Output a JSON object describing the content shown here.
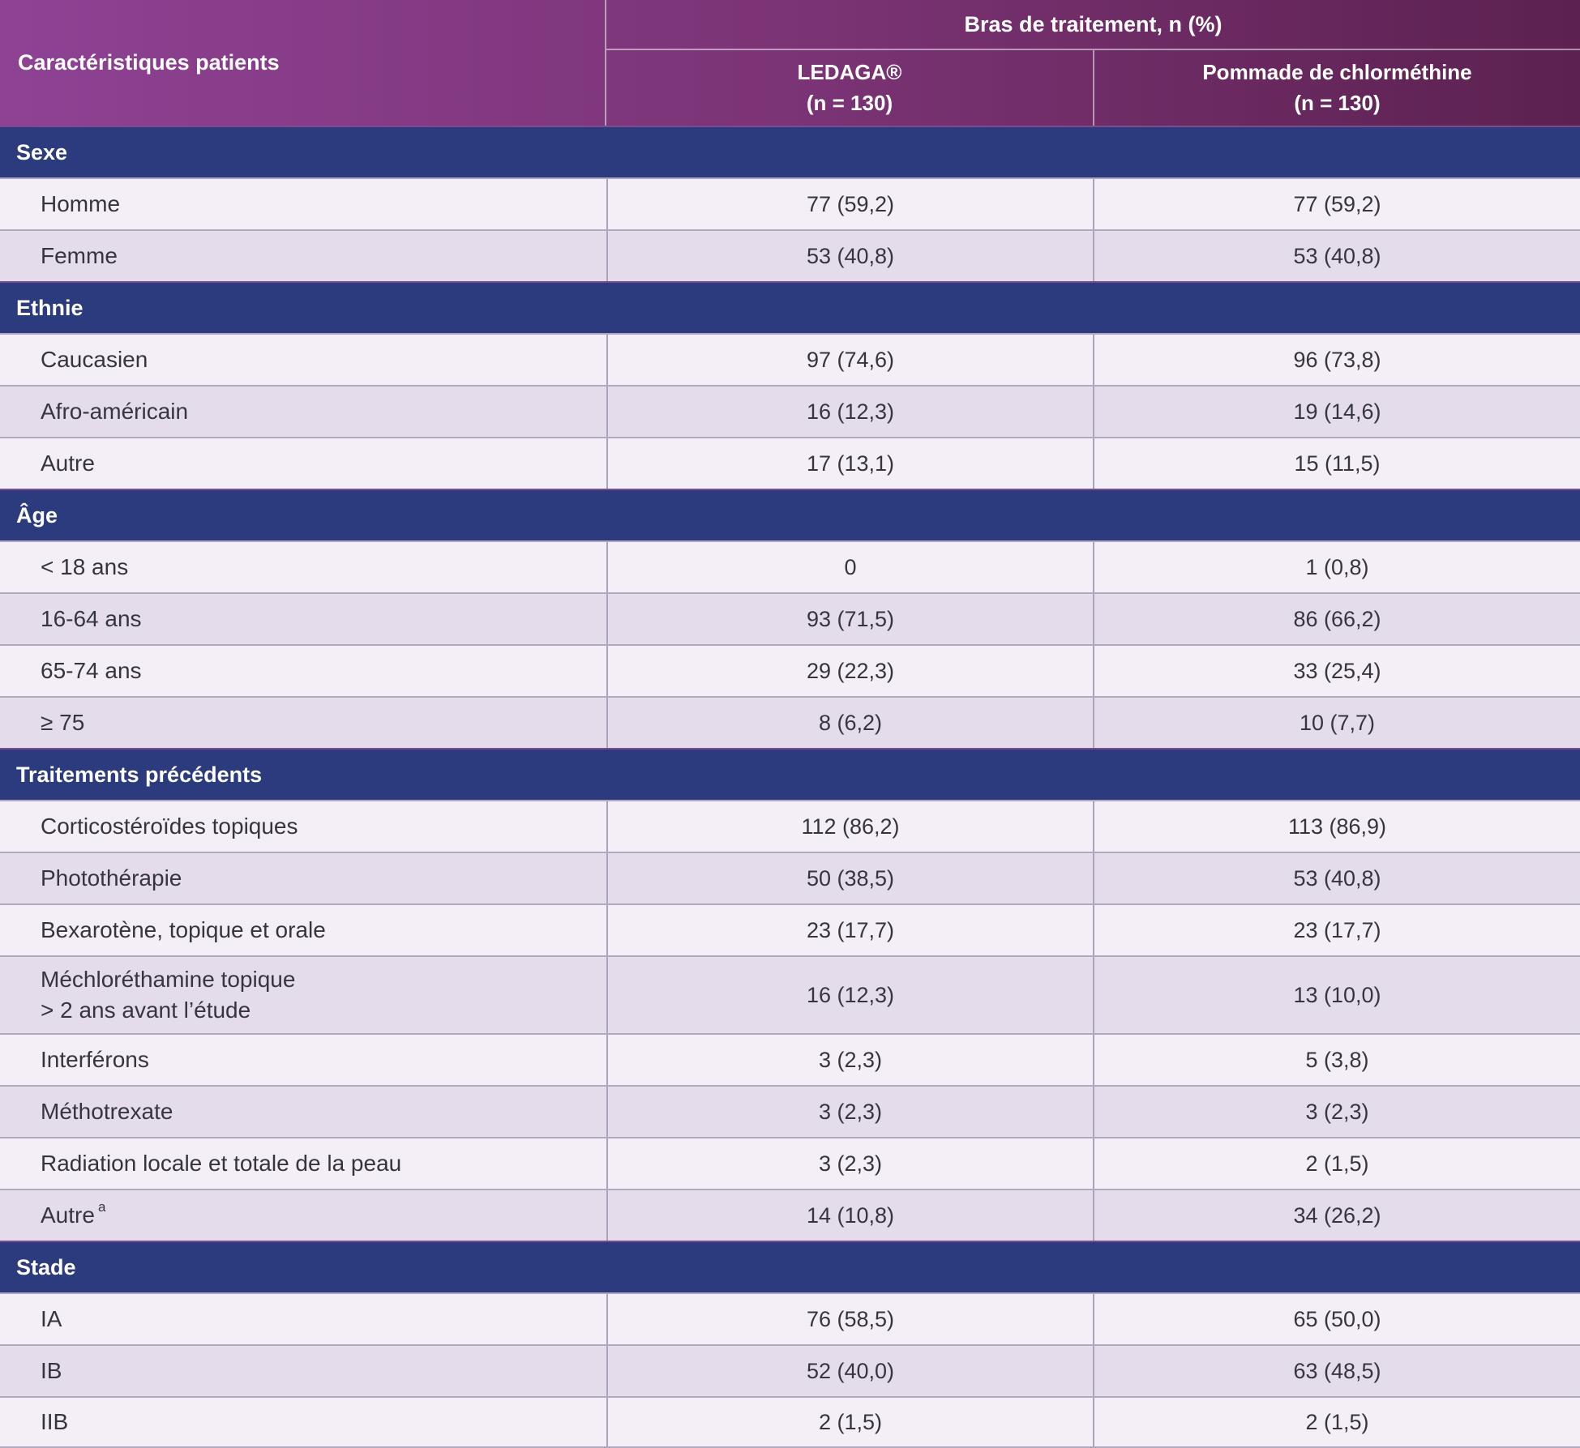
{
  "header": {
    "characteristics_label": "Caractéristiques patients",
    "treatment_arms_label": "Bras de traitement, n (%)",
    "arm1_name": "LEDAGA®",
    "arm1_n": "(n = 130)",
    "arm2_name": "Pommade de chlorméthine",
    "arm2_n": "(n = 130)"
  },
  "colors": {
    "header_gradient_start": "#8e4294",
    "header_gradient_end": "#5c2150",
    "section_band": "#2c3b7e",
    "row_light": "#f4eff6",
    "row_dark": "#e4dcea"
  },
  "table": {
    "sections": [
      {
        "title": "Sexe",
        "rows": [
          {
            "label": "Homme",
            "values": [
              "77 (59,2)",
              "77 (59,2)"
            ]
          },
          {
            "label": "Femme",
            "values": [
              "53 (40,8)",
              "53 (40,8)"
            ]
          }
        ]
      },
      {
        "title": "Ethnie",
        "rows": [
          {
            "label": "Caucasien",
            "values": [
              "97 (74,6)",
              "96 (73,8)"
            ]
          },
          {
            "label": "Afro-américain",
            "values": [
              "16 (12,3)",
              "19 (14,6)"
            ]
          },
          {
            "label": "Autre",
            "values": [
              "17 (13,1)",
              "15 (11,5)"
            ]
          }
        ]
      },
      {
        "title": "Âge",
        "rows": [
          {
            "label": "< 18 ans",
            "values": [
              "0",
              "1 (0,8)"
            ]
          },
          {
            "label": "16-64 ans",
            "values": [
              "93 (71,5)",
              "86 (66,2)"
            ]
          },
          {
            "label": "65-74 ans",
            "values": [
              "29 (22,3)",
              "33 (25,4)"
            ]
          },
          {
            "label": "≥ 75",
            "values": [
              "8 (6,2)",
              "10 (7,7)"
            ]
          }
        ]
      },
      {
        "title": "Traitements précédents",
        "rows": [
          {
            "label": "Corticostéroïdes topiques",
            "values": [
              "112 (86,2)",
              "113 (86,9)"
            ]
          },
          {
            "label": "Photothérapie",
            "values": [
              "50 (38,5)",
              "53 (40,8)"
            ]
          },
          {
            "label": "Bexarotène, topique et orale",
            "values": [
              "23 (17,7)",
              "23 (17,7)"
            ]
          },
          {
            "label": "Méchloréthamine topique\n> 2 ans avant l’étude",
            "tall": true,
            "values": [
              "16 (12,3)",
              "13 (10,0)"
            ]
          },
          {
            "label": "Interférons",
            "values": [
              "3 (2,3)",
              "5 (3,8)"
            ]
          },
          {
            "label": "Méthotrexate",
            "values": [
              "3 (2,3)",
              "3 (2,3)"
            ]
          },
          {
            "label": "Radiation locale et totale de la peau",
            "values": [
              "3 (2,3)",
              "2 (1,5)"
            ]
          },
          {
            "label": "Autre",
            "sup": "a",
            "values": [
              "14 (10,8)",
              "34 (26,2)"
            ]
          }
        ]
      },
      {
        "title": "Stade",
        "rows": [
          {
            "label": "IA",
            "values": [
              "76 (58,5)",
              "65 (50,0)"
            ]
          },
          {
            "label": "IB",
            "values": [
              "52 (40,0)",
              "63 (48,5)"
            ]
          },
          {
            "label": "IIB",
            "values": [
              "2 (1,5)",
              "2 (1,5)"
            ]
          }
        ]
      }
    ]
  }
}
